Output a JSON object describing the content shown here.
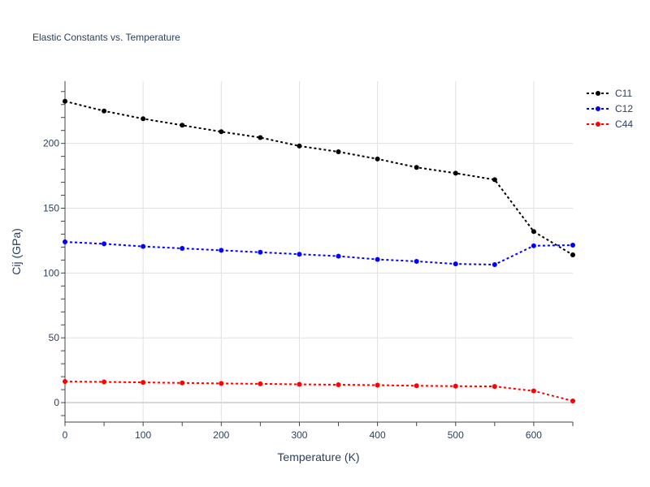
{
  "chart_data": {
    "type": "line",
    "title": "Elastic Constants vs. Temperature",
    "xlabel": "Temperature (K)",
    "ylabel": "Cij (GPa)",
    "xlim": [
      0,
      650
    ],
    "ylim": [
      -15,
      248
    ],
    "x_ticks": [
      0,
      100,
      200,
      300,
      400,
      500,
      600
    ],
    "y_ticks": [
      0,
      50,
      100,
      150,
      200
    ],
    "grid": true,
    "legend_position": "top-right",
    "x": [
      0,
      50,
      100,
      150,
      200,
      250,
      300,
      350,
      400,
      450,
      500,
      550,
      600,
      650
    ],
    "series": [
      {
        "name": "C11",
        "color": "#000000",
        "values": [
          232.5,
          225,
          219,
          214,
          209,
          204.5,
          198,
          193.5,
          188,
          181.5,
          177,
          172,
          132,
          114
        ]
      },
      {
        "name": "C12",
        "color": "#0000ff",
        "values": [
          124,
          122.5,
          120.5,
          119,
          117.5,
          116,
          114.5,
          113,
          110.5,
          109,
          107,
          106.5,
          121,
          121.5
        ]
      },
      {
        "name": "C44",
        "color": "#ff0000",
        "values": [
          16.3,
          16,
          15.6,
          15.2,
          14.8,
          14.5,
          14.1,
          13.8,
          13.5,
          13,
          12.7,
          12.5,
          9,
          1.3
        ]
      }
    ]
  }
}
